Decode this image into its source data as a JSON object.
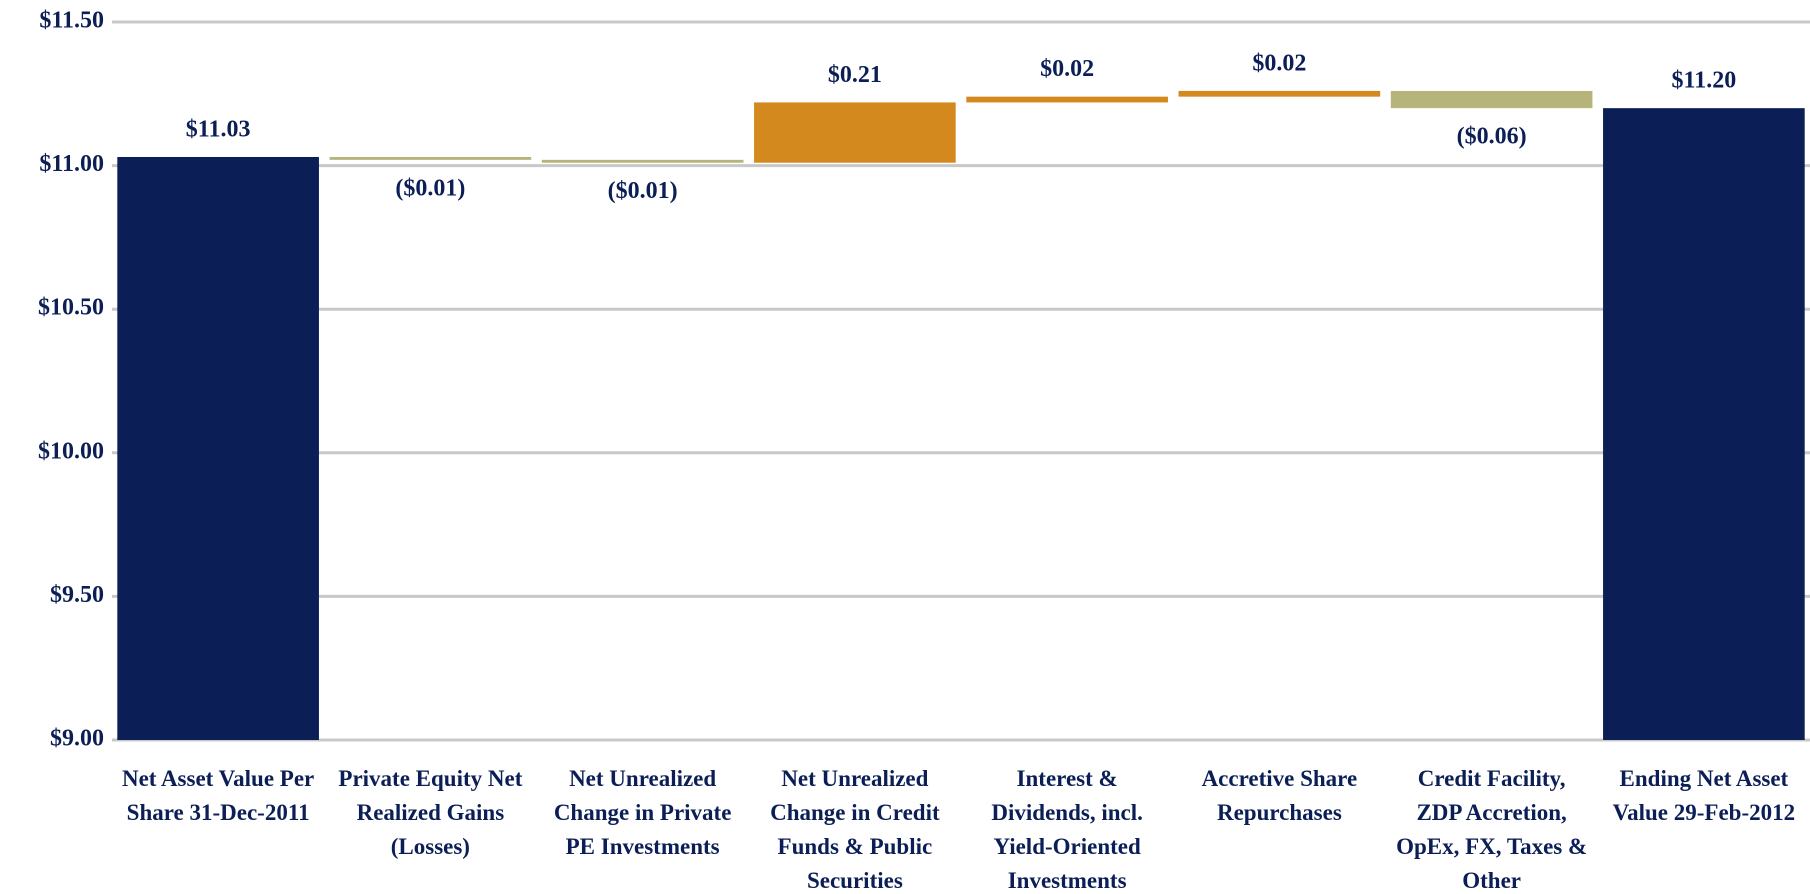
{
  "chart_data": {
    "type": "waterfall",
    "categories": [
      "Net Asset Value Per Share 31-Dec-2011",
      "Private Equity Net Realized Gains (Losses)",
      "Net Unrealized Change in Private PE Investments",
      "Net Unrealized Change in Credit Funds & Public Securities",
      "Interest & Dividends, incl. Yield-Oriented Investments",
      "Accretive Share Repurchases",
      "Credit Facility, ZDP Accretion, OpEx, FX, Taxes & Other",
      "Ending Net Asset Value 29-Feb-2012"
    ],
    "values": [
      11.03,
      -0.01,
      -0.01,
      0.21,
      0.02,
      0.02,
      -0.06,
      11.2
    ],
    "value_labels": [
      "$11.03",
      "($0.01)",
      "($0.01)",
      "$0.21",
      "$0.02",
      "$0.02",
      "($0.06)",
      "$11.20"
    ],
    "total_color": "#0b1f56",
    "increase_color": "#d4891f",
    "decrease_color": "#b5b47a",
    "ylim": [
      9.0,
      11.5
    ],
    "yticks": [
      {
        "value": 9.0,
        "label": "$9.00"
      },
      {
        "value": 9.5,
        "label": "$9.50"
      },
      {
        "value": 10.0,
        "label": "$10.00"
      },
      {
        "value": 10.5,
        "label": "$10.50"
      },
      {
        "value": 11.0,
        "label": "$11.00"
      },
      {
        "value": 11.5,
        "label": "$11.50"
      }
    ],
    "grid": true
  }
}
